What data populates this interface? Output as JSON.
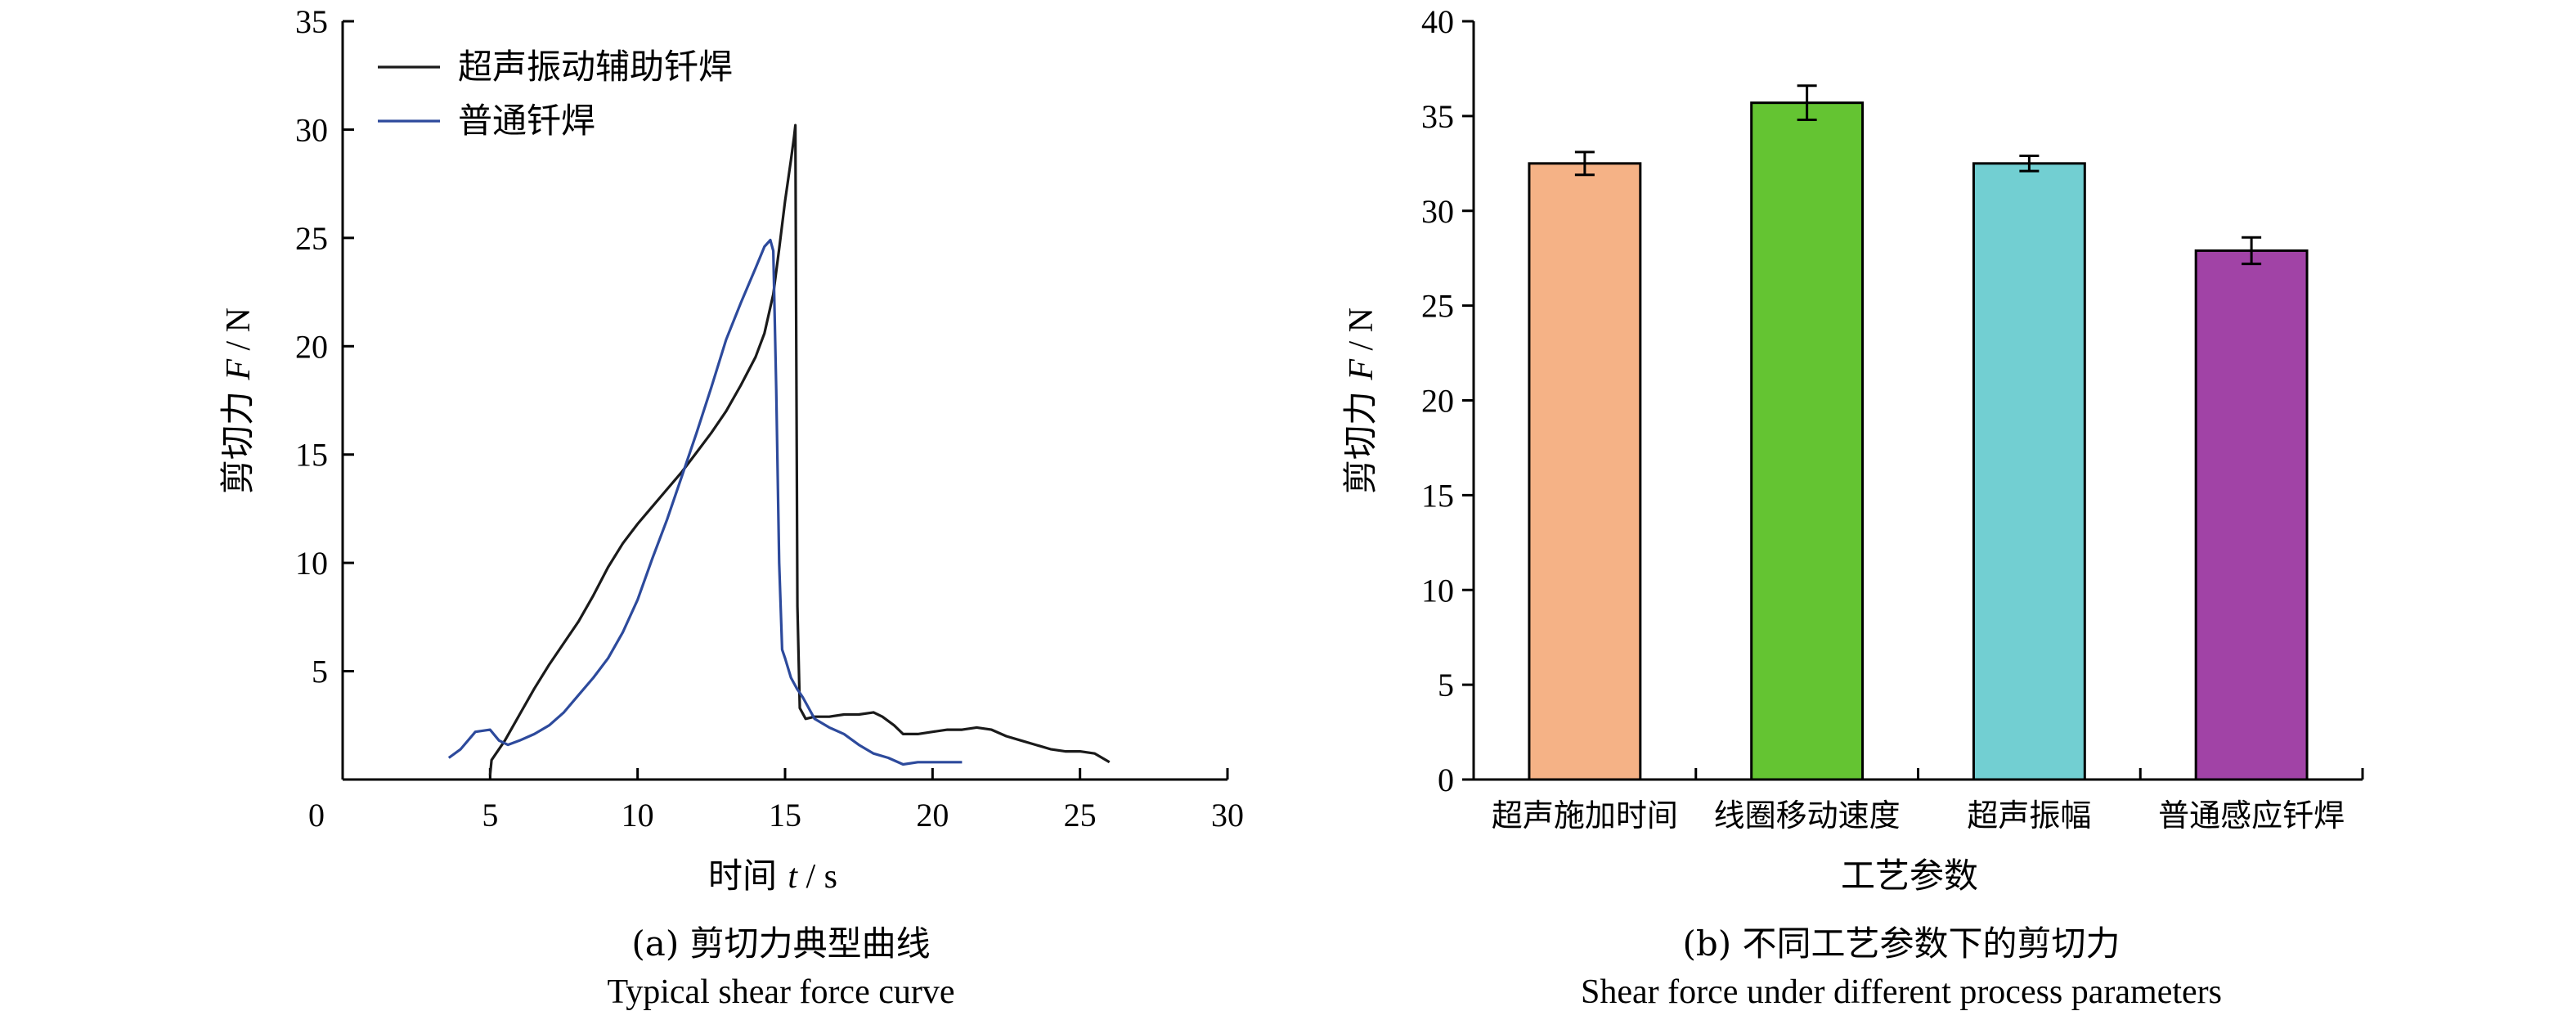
{
  "chart_data": [
    {
      "type": "line",
      "caption": "(a) 剪切力典型曲线",
      "caption_en": "Typical shear force curve",
      "xlabel_text": "时间 ",
      "xlabel_var": "t",
      "xlabel_unit": " / s",
      "ylabel_text": "剪切力 ",
      "ylabel_var": "F",
      "ylabel_unit": " / N",
      "xlim": [
        0,
        30
      ],
      "ylim": [
        0,
        35
      ],
      "xticks": [
        0,
        5,
        10,
        15,
        20,
        25,
        30
      ],
      "yticks": [
        5,
        10,
        15,
        20,
        25,
        30,
        35
      ],
      "legend_position": "top-left",
      "series": [
        {
          "name": "超声振动辅助钎焊",
          "color": "#1a1a1a",
          "x": [
            5.0,
            5.05,
            5.5,
            6.0,
            6.5,
            7.0,
            7.5,
            8.0,
            8.5,
            9.0,
            9.5,
            10.0,
            10.5,
            11.0,
            11.5,
            12.0,
            12.5,
            13.0,
            13.5,
            14.0,
            14.3,
            14.6,
            14.8,
            15.0,
            15.2,
            15.3,
            15.35,
            15.38,
            15.42,
            15.5,
            15.7,
            16.0,
            16.5,
            17.0,
            17.5,
            18.0,
            18.3,
            18.7,
            19.0,
            19.5,
            20.0,
            20.5,
            21.0,
            21.5,
            22.0,
            22.5,
            23.0,
            23.5,
            24.0,
            24.5,
            25.0,
            25.5,
            26.0
          ],
          "y": [
            0.2,
            0.9,
            1.8,
            3.0,
            4.2,
            5.3,
            6.3,
            7.3,
            8.5,
            9.8,
            10.9,
            11.8,
            12.6,
            13.4,
            14.2,
            15.1,
            16.0,
            17.0,
            18.2,
            19.5,
            20.6,
            22.4,
            24.5,
            26.7,
            28.6,
            29.6,
            30.2,
            20.0,
            8.0,
            3.3,
            2.8,
            2.9,
            2.9,
            3.0,
            3.0,
            3.1,
            2.9,
            2.5,
            2.1,
            2.1,
            2.2,
            2.3,
            2.3,
            2.4,
            2.3,
            2.0,
            1.8,
            1.6,
            1.4,
            1.3,
            1.3,
            1.2,
            0.8
          ]
        },
        {
          "name": "普通钎焊",
          "color": "#2d4a9c",
          "x": [
            3.6,
            4.0,
            4.5,
            5.0,
            5.3,
            5.6,
            6.0,
            6.5,
            7.0,
            7.5,
            8.0,
            8.5,
            9.0,
            9.5,
            10.0,
            10.5,
            11.0,
            11.5,
            12.0,
            12.5,
            13.0,
            13.5,
            14.0,
            14.3,
            14.5,
            14.6,
            14.7,
            14.8,
            14.9,
            15.0,
            15.2,
            15.4,
            15.6,
            15.8,
            16.0,
            16.5,
            17.0,
            17.5,
            18.0,
            18.5,
            19.0,
            19.5,
            20.0,
            20.5,
            21.0
          ],
          "y": [
            1.0,
            1.4,
            2.2,
            2.3,
            1.8,
            1.6,
            1.8,
            2.1,
            2.5,
            3.1,
            3.9,
            4.7,
            5.6,
            6.8,
            8.3,
            10.2,
            12.0,
            14.0,
            16.0,
            18.1,
            20.3,
            22.0,
            23.6,
            24.6,
            24.9,
            24.4,
            18.0,
            10.0,
            6.0,
            5.6,
            4.7,
            4.2,
            3.8,
            3.3,
            2.8,
            2.4,
            2.1,
            1.6,
            1.2,
            1.0,
            0.7,
            0.8,
            0.8,
            0.8,
            0.8
          ]
        }
      ]
    },
    {
      "type": "bar",
      "caption": "(b) 不同工艺参数下的剪切力",
      "caption_en": "Shear force under different process parameters",
      "xlabel": "工艺参数",
      "ylabel_text": "剪切力 ",
      "ylabel_var": "F",
      "ylabel_unit": " / N",
      "ylim": [
        0,
        40
      ],
      "yticks": [
        0,
        5,
        10,
        15,
        20,
        25,
        30,
        35,
        40
      ],
      "categories": [
        "超声施加时间",
        "线圈移动速度",
        "超声振幅",
        "普通感应钎焊"
      ],
      "values": [
        32.5,
        35.7,
        32.5,
        27.9
      ],
      "errors": [
        0.6,
        0.9,
        0.4,
        0.7
      ],
      "colors": [
        "#f5b286",
        "#64c432",
        "#72cfd2",
        "#a143a6"
      ]
    }
  ]
}
